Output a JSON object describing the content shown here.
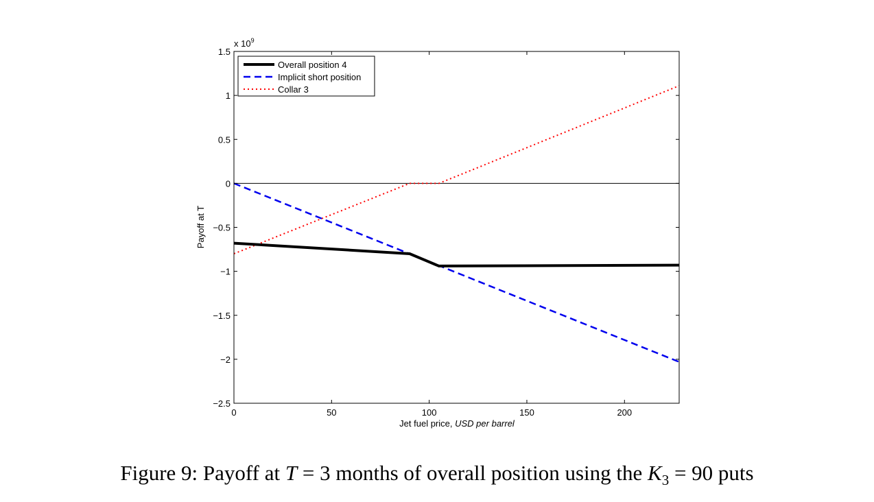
{
  "chart_data": {
    "type": "line",
    "title": "",
    "xlabel_plain": "Jet fuel price,",
    "xlabel_italic": "USD per barrel",
    "ylabel": "Payoff at T",
    "y_exponent_label": "x 10",
    "y_exponent_power": "9",
    "xlim": [
      0,
      228
    ],
    "ylim": [
      -2.5,
      1.5
    ],
    "x_ticks": [
      0,
      50,
      100,
      150,
      200
    ],
    "x_tick_labels": [
      "0",
      "50",
      "100",
      "150",
      "200"
    ],
    "y_ticks": [
      1.5,
      1,
      0.5,
      0,
      -0.5,
      -1,
      -1.5,
      -2,
      -2.5
    ],
    "y_tick_labels": [
      "1.5",
      "1",
      "0.5",
      "0",
      "−0.5",
      "−1",
      "−1.5",
      "−2",
      "−2.5"
    ],
    "zero_line": true,
    "grid": false,
    "legend_position": "top-left",
    "series": [
      {
        "name": "Overall position 4",
        "color": "#000000",
        "style": "solid",
        "x": [
          0,
          90,
          105,
          228
        ],
        "y": [
          -0.68,
          -0.8,
          -0.94,
          -0.93
        ]
      },
      {
        "name": "Implicit short position",
        "color": "#0000ee",
        "style": "dashed",
        "x": [
          0,
          228
        ],
        "y": [
          0,
          -2.03
        ]
      },
      {
        "name": "Collar 3",
        "color": "#ff0000",
        "style": "dotted",
        "x": [
          0,
          90,
          105,
          228
        ],
        "y": [
          -0.8,
          0,
          0,
          1.11
        ]
      }
    ]
  },
  "caption": {
    "prefix": "Figure 9:  Payoff at ",
    "var_T": "T",
    "mid1": " = 3 months of overall position using the ",
    "var_K": "K",
    "sub_K": "3",
    "suffix": " = 90 puts"
  }
}
